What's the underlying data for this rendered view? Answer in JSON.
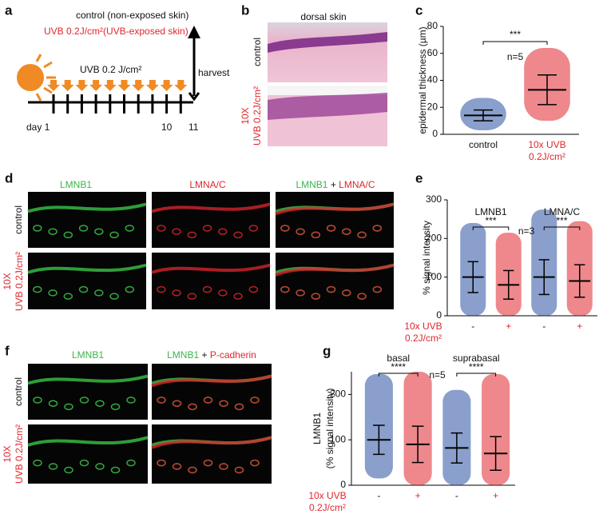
{
  "panel_labels": [
    "a",
    "b",
    "c",
    "d",
    "e",
    "f",
    "g"
  ],
  "panel_a": {
    "line1": "control (non-exposed skin)",
    "line2": "UVB 0.2J/cm²(UVB-exposed skin)",
    "uvb": "UVB 0.2 J/cm²",
    "harvest": "harvest",
    "day_labels": [
      "day 1",
      "10",
      "11"
    ]
  },
  "panel_b": {
    "title": "dorsal skin",
    "row_top": "control",
    "row_bottom": [
      "10X",
      "UVB 0.2J/cm²"
    ]
  },
  "panel_d": {
    "columns": [
      [
        "LMNB1"
      ],
      [
        "LMNA/C"
      ],
      [
        "LMNB1",
        " + ",
        "LMNA/C"
      ]
    ],
    "row_top": "control",
    "row_bottom": [
      "10X",
      "UVB 0.2J/cm²"
    ]
  },
  "panel_f": {
    "columns": [
      [
        "LMNB1"
      ],
      [
        "LMNB1",
        " + ",
        "P-cadherin"
      ]
    ],
    "row_top": "control",
    "row_bottom": [
      "10X",
      "UVB 0.2J/cm²"
    ]
  },
  "chart_data": [
    {
      "type": "dotplot",
      "ylabel": [
        "epidermal thickness (µm)"
      ],
      "categories": [
        "control",
        "10x UVB"
      ],
      "x_sublabel": "0.2J/cm²",
      "values": [
        14,
        33
      ],
      "errors": [
        4,
        11
      ],
      "ranges": [
        [
          3,
          27
        ],
        [
          10,
          64
        ]
      ],
      "colors": [
        "#2a50a3",
        "#e0262d"
      ],
      "ylim": [
        0,
        80
      ],
      "yticks": [
        0,
        20,
        40,
        60,
        80
      ],
      "groups": [
        {
          "significance": "***"
        }
      ],
      "annotation": "n=5"
    },
    {
      "type": "dotplot",
      "ylabel": [
        "% signal intensity"
      ],
      "categories": [
        "-",
        "+",
        "-",
        "+"
      ],
      "x_label": [
        "10x UVB",
        "0.2J/cm²"
      ],
      "values": [
        100,
        80,
        100,
        90
      ],
      "errors": [
        40,
        37,
        45,
        42
      ],
      "ranges": [
        [
          0,
          240
        ],
        [
          0,
          215
        ],
        [
          0,
          275
        ],
        [
          0,
          245
        ]
      ],
      "colors": [
        "#2a50a3",
        "#e0262d",
        "#2a50a3",
        "#e0262d"
      ],
      "ylim": [
        0,
        300
      ],
      "yticks": [
        0,
        100,
        200,
        300
      ],
      "groups": [
        {
          "label": "LMNB1",
          "significance": "***"
        },
        {
          "label": "LMNA/C",
          "significance": "***"
        }
      ],
      "annotation": "n=3"
    },
    {
      "type": "dotplot",
      "ylabel": [
        "LMNB1",
        "(% signal intensity)"
      ],
      "categories": [
        "-",
        "+",
        "-",
        "+"
      ],
      "x_label": [
        "10x UVB",
        "0.2J/cm²"
      ],
      "values": [
        100,
        90,
        82,
        70
      ],
      "errors": [
        32,
        40,
        33,
        37
      ],
      "ranges": [
        [
          15,
          245
        ],
        [
          0,
          250
        ],
        [
          0,
          210
        ],
        [
          0,
          245
        ]
      ],
      "colors": [
        "#2a50a3",
        "#e0262d",
        "#2a50a3",
        "#e0262d"
      ],
      "ylim": [
        0,
        250
      ],
      "yticks": [
        0,
        100,
        200
      ],
      "groups": [
        {
          "label": "basal",
          "significance": "****"
        },
        {
          "label": "suprabasal",
          "significance": "****"
        }
      ],
      "annotation": "n=5"
    }
  ]
}
